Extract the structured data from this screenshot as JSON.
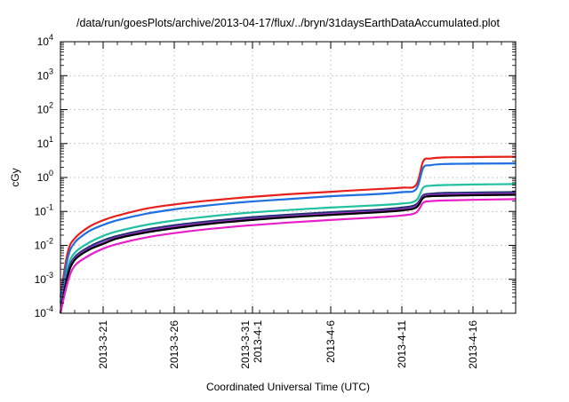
{
  "chart_data": {
    "type": "line",
    "title": "/data/run/goesPlots/archive/2013-04-17/flux/../bryn/31daysEarthDataAccumulated.plot",
    "xlabel": "Coordinated Universal Time (UTC)",
    "ylabel": "cGy",
    "y_scale": "log",
    "ylim": [
      0.0001,
      10000
    ],
    "xlim": [
      "2013-03-18",
      "2013-04-19"
    ],
    "y_ticks": [
      {
        "base": "10",
        "exp": "-4",
        "value": 0.0001
      },
      {
        "base": "10",
        "exp": "-3",
        "value": 0.001
      },
      {
        "base": "10",
        "exp": "-2",
        "value": 0.01
      },
      {
        "base": "10",
        "exp": "-1",
        "value": 0.1
      },
      {
        "base": "10",
        "exp": "0",
        "value": 1
      },
      {
        "base": "10",
        "exp": "1",
        "value": 10
      },
      {
        "base": "10",
        "exp": "2",
        "value": 100
      },
      {
        "base": "10",
        "exp": "3",
        "value": 1000
      },
      {
        "base": "10",
        "exp": "4",
        "value": 10000
      }
    ],
    "x_ticks": [
      {
        "label": "2013-3-21",
        "label2": "",
        "date": "2013-03-21"
      },
      {
        "label": "2013-3-26",
        "label2": "",
        "date": "2013-03-26"
      },
      {
        "label": "2013-3-31",
        "label2": "2013-4-1",
        "date": "2013-03-31T12:00"
      },
      {
        "label": "2013-4-6",
        "label2": "",
        "date": "2013-04-06"
      },
      {
        "label": "2013-4-11",
        "label2": "",
        "date": "2013-04-11"
      },
      {
        "label": "2013-4-16",
        "label2": "",
        "date": "2013-04-16"
      }
    ],
    "grid": true,
    "legend": "none",
    "x": [
      "2013-03-18",
      "2013-03-18T12:00",
      "2013-03-19",
      "2013-03-20",
      "2013-03-21",
      "2013-03-22",
      "2013-03-24",
      "2013-03-26",
      "2013-03-28",
      "2013-03-31",
      "2013-04-03",
      "2013-04-06",
      "2013-04-09",
      "2013-04-11",
      "2013-04-12",
      "2013-04-12T12:00",
      "2013-04-13",
      "2013-04-14",
      "2013-04-16",
      "2013-04-19"
    ],
    "series": [
      {
        "color": "#e8201c",
        "values": [
          0.0003,
          0.006,
          0.016,
          0.035,
          0.055,
          0.075,
          0.12,
          0.16,
          0.2,
          0.26,
          0.32,
          0.38,
          0.45,
          0.5,
          0.6,
          3.0,
          3.6,
          3.9,
          4.0,
          4.1
        ]
      },
      {
        "color": "#1f6fe0",
        "values": [
          0.0002,
          0.004,
          0.012,
          0.026,
          0.04,
          0.055,
          0.085,
          0.115,
          0.145,
          0.19,
          0.23,
          0.28,
          0.32,
          0.37,
          0.45,
          1.9,
          2.3,
          2.5,
          2.55,
          2.6
        ]
      },
      {
        "color": "#20c0a0",
        "values": [
          0.0001,
          0.002,
          0.006,
          0.012,
          0.019,
          0.026,
          0.04,
          0.054,
          0.068,
          0.09,
          0.11,
          0.13,
          0.15,
          0.17,
          0.21,
          0.5,
          0.57,
          0.6,
          0.62,
          0.64
        ]
      },
      {
        "color": "#203070",
        "values": [
          0.0001,
          0.0015,
          0.0045,
          0.009,
          0.014,
          0.019,
          0.029,
          0.039,
          0.049,
          0.065,
          0.08,
          0.095,
          0.11,
          0.13,
          0.16,
          0.3,
          0.33,
          0.35,
          0.36,
          0.37
        ]
      },
      {
        "color": "#9a35c8",
        "values": [
          0.0001,
          0.0013,
          0.004,
          0.008,
          0.012,
          0.017,
          0.026,
          0.035,
          0.044,
          0.058,
          0.072,
          0.085,
          0.1,
          0.115,
          0.14,
          0.27,
          0.3,
          0.315,
          0.325,
          0.335
        ]
      },
      {
        "color": "#000000",
        "values": [
          0.0001,
          0.0012,
          0.0037,
          0.0074,
          0.011,
          0.016,
          0.024,
          0.032,
          0.041,
          0.054,
          0.067,
          0.079,
          0.093,
          0.107,
          0.13,
          0.25,
          0.28,
          0.29,
          0.3,
          0.31
        ]
      },
      {
        "color": "#e81ec8",
        "values": [
          0.0001,
          0.0008,
          0.0025,
          0.005,
          0.008,
          0.011,
          0.017,
          0.023,
          0.029,
          0.038,
          0.047,
          0.056,
          0.066,
          0.076,
          0.092,
          0.18,
          0.2,
          0.21,
          0.22,
          0.23
        ]
      }
    ]
  }
}
